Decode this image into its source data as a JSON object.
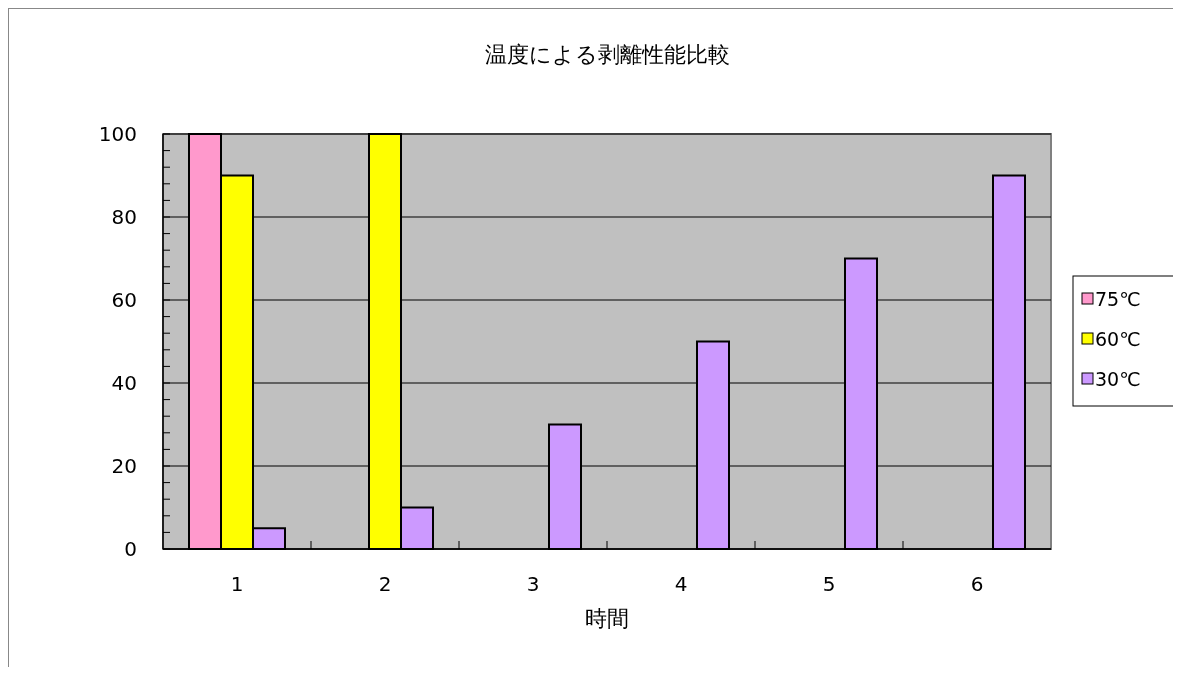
{
  "chart_data": {
    "type": "bar",
    "title": "温度による剥離性能比較",
    "xlabel": "時間",
    "categories": [
      "1",
      "2",
      "3",
      "4",
      "5",
      "6"
    ],
    "series": [
      {
        "name": "75℃",
        "color": "#ff99cc",
        "values": [
          100,
          null,
          null,
          null,
          null,
          null
        ]
      },
      {
        "name": "60℃",
        "color": "#ffff00",
        "values": [
          90,
          100,
          null,
          null,
          null,
          null
        ]
      },
      {
        "name": "30℃",
        "color": "#cc99ff",
        "values": [
          5,
          10,
          30,
          50,
          70,
          90
        ]
      }
    ],
    "ylim": [
      0,
      100
    ],
    "yticks": [
      0,
      {
        "value": 4,
        "label": null
      },
      {
        "value": 8,
        "label": null
      },
      {
        "value": 12,
        "label": null
      },
      {
        "value": 16,
        "label": null
      },
      20,
      {
        "value": 24,
        "label": null
      },
      {
        "value": 28,
        "label": null
      },
      {
        "value": 32,
        "label": null
      },
      {
        "value": 36,
        "label": null
      },
      40,
      {
        "value": 44,
        "label": null
      },
      {
        "value": 48,
        "label": null
      },
      {
        "value": 52,
        "label": null
      },
      {
        "value": 56,
        "label": null
      },
      60,
      {
        "value": 64,
        "label": null
      },
      {
        "value": 68,
        "label": null
      },
      {
        "value": 72,
        "label": null
      },
      {
        "value": 76,
        "label": null
      },
      80,
      {
        "value": 84,
        "label": null
      },
      {
        "value": 88,
        "label": null
      },
      {
        "value": 92,
        "label": null
      },
      {
        "value": 96,
        "label": null
      },
      100
    ],
    "grid": "y",
    "legend": "right"
  }
}
